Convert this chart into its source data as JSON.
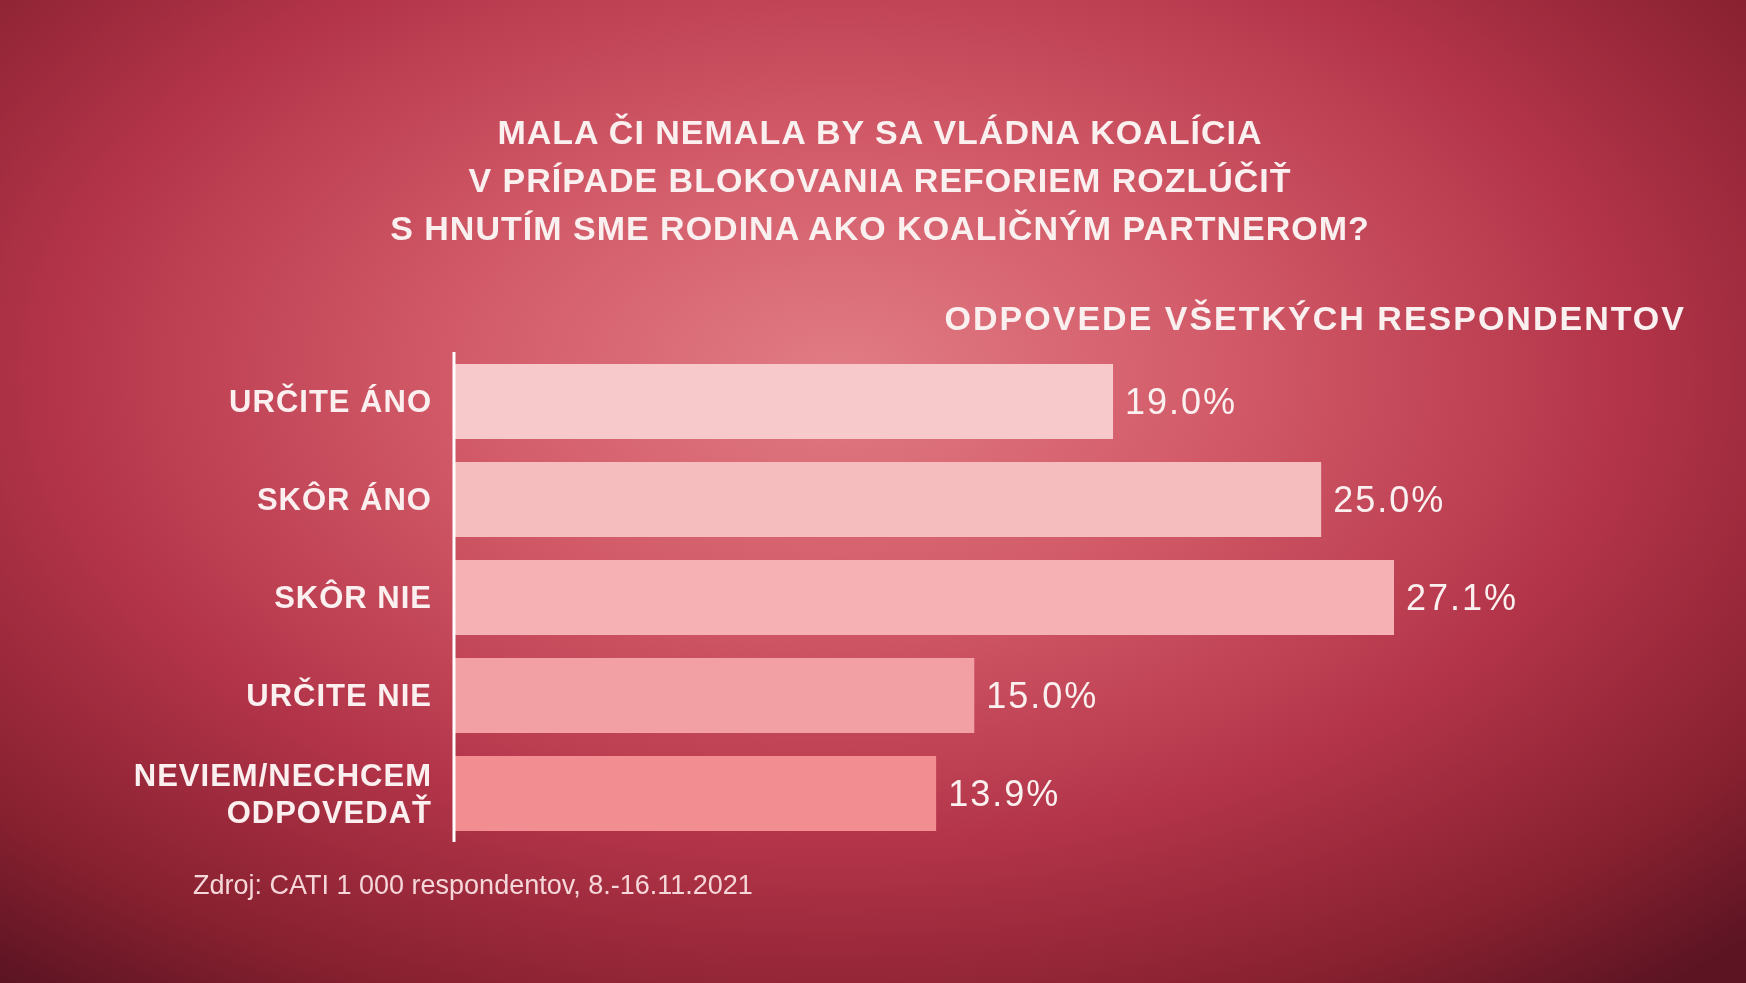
{
  "chart_data": {
    "type": "bar",
    "orientation": "horizontal",
    "title": "MALA ČI NEMALA BY SA VLÁDNA KOALÍCIA\nV PRÍPADE BLOKOVANIA REFORIEM ROZLÚČIŤ\nS HNUTÍM SME RODINA AKO KOALIČNÝM PARTNEROM?",
    "subtitle": "ODPOVEDE VŠETKÝCH RESPONDENTOV",
    "categories": [
      "URČITE ÁNO",
      "SKÔR ÁNO",
      "SKÔR NIE",
      "URČITE NIE",
      "NEVIEM/NECHCEM ODPOVEDAŤ"
    ],
    "values": [
      19.0,
      25.0,
      27.1,
      15.0,
      13.9
    ],
    "value_labels": [
      "19.0%",
      "25.0%",
      "27.1%",
      "15.0%",
      "13.9%"
    ],
    "colors": [
      "#f7c9ca",
      "#f6bdbf",
      "#f5b1b4",
      "#f3a0a4",
      "#f28e92"
    ],
    "tick_labels": "y",
    "annotations": [
      "Zdroj: CATI 1 000 respondentov, 8.-16.11.2021"
    ]
  }
}
